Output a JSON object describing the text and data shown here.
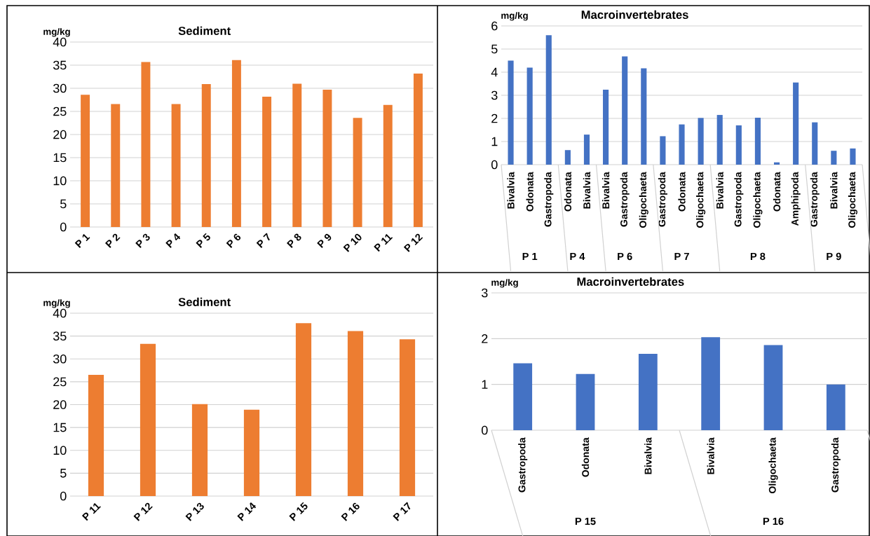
{
  "chart_data": [
    {
      "type": "bar",
      "title": "Sediment",
      "ylabel": "mg/kg",
      "color": "#ed7d31",
      "grid": "y",
      "ylim": [
        0,
        40
      ],
      "yticks": [
        0,
        5,
        10,
        15,
        20,
        25,
        30,
        35,
        40
      ],
      "categories": [
        "P 1",
        "P 2",
        "P 3",
        "P 4",
        "P 5",
        "P 6",
        "P 7",
        "P 8",
        "P 9",
        "P 10",
        "P 11",
        "P 12"
      ],
      "values": [
        28.6,
        26.6,
        35.7,
        26.6,
        30.9,
        36.1,
        28.2,
        31.0,
        29.7,
        23.6,
        26.4,
        33.2
      ]
    },
    {
      "type": "bar",
      "title": "Macroinvertebrates",
      "ylabel": "mg/kg",
      "color": "#4472c4",
      "grid": "y",
      "ylim": [
        0,
        6
      ],
      "yticks": [
        0,
        1,
        2,
        3,
        4,
        5,
        6
      ],
      "categories": [
        "Bivalvia",
        "Odonata",
        "Gastropoda",
        "Odonata",
        "Bivalvia",
        "Bivalvia",
        "Gastropoda",
        "Oligochaeta",
        "Gastropoda",
        "Odonata",
        "Oligochaeta",
        "Bivalvia",
        "Gastropoda",
        "Oligochaeta",
        "Odonata",
        "Amphipoda",
        "Gastropoda",
        "Bivalvia",
        "Oligochaeta"
      ],
      "values": [
        4.5,
        4.2,
        5.6,
        0.63,
        1.3,
        3.24,
        4.68,
        4.17,
        1.23,
        1.74,
        2.02,
        2.15,
        1.7,
        2.03,
        0.1,
        3.55,
        1.83,
        0.6,
        0.7
      ],
      "annotations": [
        "P 1",
        "P 4",
        "P 6",
        "P 7",
        "P 8",
        "P 9"
      ]
    },
    {
      "type": "bar",
      "title": "Sediment",
      "ylabel": "mg/kg",
      "color": "#ed7d31",
      "grid": "y",
      "ylim": [
        0,
        40
      ],
      "yticks": [
        0,
        5,
        10,
        15,
        20,
        25,
        30,
        35,
        40
      ],
      "categories": [
        "P 11",
        "P 12",
        "P 13",
        "P 14",
        "P 15",
        "P 16",
        "P 17"
      ],
      "values": [
        26.5,
        33.3,
        20.1,
        18.9,
        37.8,
        36.1,
        34.3
      ]
    },
    {
      "type": "bar",
      "title": "Macroinvertebrates",
      "ylabel": "mg/kg",
      "color": "#4472c4",
      "grid": "y",
      "ylim": [
        0,
        3
      ],
      "yticks": [
        0,
        1,
        2,
        3
      ],
      "categories": [
        "Gastropoda",
        "Odonata",
        "Bivalvia",
        "Bivalvia",
        "Oligochaeta",
        "Gastropoda"
      ],
      "values": [
        1.46,
        1.23,
        1.67,
        2.03,
        1.86,
        1.0
      ],
      "annotations": [
        "P 15",
        "P 16"
      ]
    }
  ]
}
